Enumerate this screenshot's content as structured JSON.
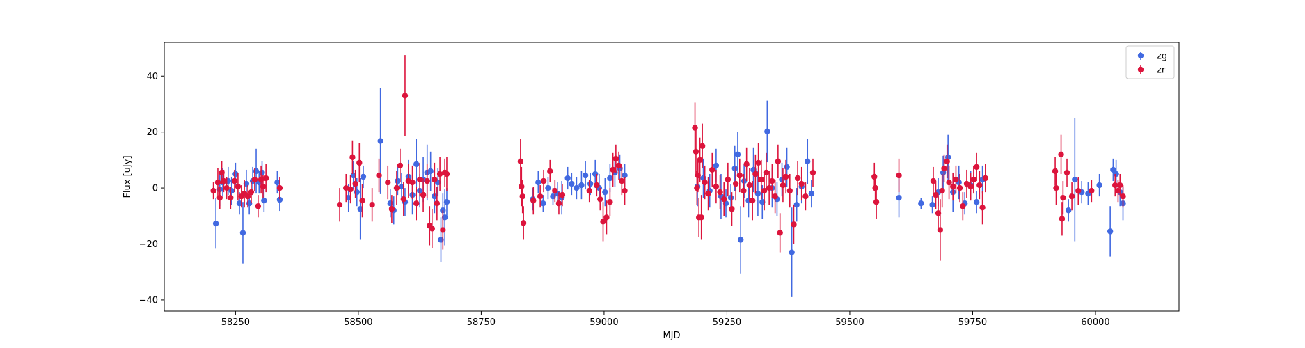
{
  "chart_data": {
    "type": "scatter",
    "xlabel": "MJD",
    "ylabel": "Flux [uJy]",
    "xlim": [
      58105,
      60170
    ],
    "ylim": [
      -44,
      52
    ],
    "xticks": [
      58250,
      58500,
      58750,
      59000,
      59250,
      59500,
      59750,
      60000
    ],
    "yticks": [
      -40,
      -20,
      0,
      20,
      40
    ],
    "grid": false,
    "legend_position": "top-right",
    "series": [
      {
        "name": "zg",
        "color": "#4169e1",
        "points": [
          [
            58210,
            -12.7,
            9
          ],
          [
            58218,
            -0.5,
            6
          ],
          [
            58224,
            2.0,
            5
          ],
          [
            58235,
            2.5,
            5
          ],
          [
            58242,
            -1.0,
            5
          ],
          [
            58250,
            5.0,
            4
          ],
          [
            58258,
            -5.5,
            4
          ],
          [
            58265,
            -16.0,
            11
          ],
          [
            58272,
            1.5,
            5
          ],
          [
            58278,
            -5.5,
            4
          ],
          [
            58285,
            2.5,
            5
          ],
          [
            58292,
            6.0,
            8
          ],
          [
            58298,
            2.0,
            4
          ],
          [
            58304,
            5.5,
            4
          ],
          [
            58308,
            -4.5,
            4
          ],
          [
            58335,
            2.0,
            4
          ],
          [
            58340,
            -4.2,
            4
          ],
          [
            58480,
            -3.5,
            5
          ],
          [
            58490,
            4.5,
            5
          ],
          [
            58497,
            -1.5,
            5
          ],
          [
            58504,
            -7.5,
            11
          ],
          [
            58510,
            4.0,
            4
          ],
          [
            58545,
            16.8,
            19
          ],
          [
            58565,
            -5.5,
            5
          ],
          [
            58572,
            -8.0,
            5
          ],
          [
            58580,
            2.5,
            5
          ],
          [
            58588,
            0.5,
            5
          ],
          [
            58595,
            -5.0,
            5
          ],
          [
            58602,
            4.0,
            6
          ],
          [
            58610,
            -2.5,
            7
          ],
          [
            58618,
            8.5,
            9
          ],
          [
            58625,
            -1.0,
            6
          ],
          [
            58632,
            3.0,
            8
          ],
          [
            58640,
            5.5,
            10
          ],
          [
            58647,
            6.0,
            7
          ],
          [
            58655,
            -3.0,
            6
          ],
          [
            58662,
            2.0,
            5
          ],
          [
            58668,
            -18.5,
            8
          ],
          [
            58672,
            -8.0,
            6
          ],
          [
            58676,
            -10.5,
            10
          ],
          [
            58680,
            -5.0,
            5
          ],
          [
            58855,
            -4.0,
            4
          ],
          [
            58866,
            2.0,
            4
          ],
          [
            58876,
            -5.5,
            3
          ],
          [
            58886,
            0.0,
            4
          ],
          [
            58896,
            -3.0,
            3
          ],
          [
            58905,
            -2.0,
            4
          ],
          [
            58914,
            -3.5,
            6
          ],
          [
            58926,
            3.5,
            4
          ],
          [
            58934,
            1.5,
            4
          ],
          [
            58944,
            0.0,
            4
          ],
          [
            58954,
            1.0,
            5
          ],
          [
            58962,
            4.5,
            5
          ],
          [
            58972,
            1.5,
            4
          ],
          [
            58982,
            5.0,
            5
          ],
          [
            58990,
            0.0,
            5
          ],
          [
            59002,
            -1.5,
            5
          ],
          [
            59012,
            3.5,
            5
          ],
          [
            59022,
            5.5,
            5
          ],
          [
            59032,
            7.0,
            5
          ],
          [
            59042,
            4.5,
            4
          ],
          [
            59190,
            0.5,
            7
          ],
          [
            59202,
            3.5,
            7
          ],
          [
            59215,
            -1.0,
            6
          ],
          [
            59228,
            8.0,
            6
          ],
          [
            59238,
            -3.0,
            8
          ],
          [
            59248,
            -5.5,
            5
          ],
          [
            59258,
            -3.5,
            5
          ],
          [
            59266,
            7.0,
            8
          ],
          [
            59272,
            12.0,
            8
          ],
          [
            59278,
            -18.5,
            12
          ],
          [
            59285,
            2.5,
            6
          ],
          [
            59294,
            -4.5,
            6
          ],
          [
            59304,
            6.5,
            8
          ],
          [
            59313,
            -2.0,
            8
          ],
          [
            59322,
            -5.0,
            6
          ],
          [
            59332,
            20.2,
            11
          ],
          [
            59342,
            0.0,
            7
          ],
          [
            59352,
            -4.0,
            6
          ],
          [
            59362,
            3.0,
            6
          ],
          [
            59372,
            7.5,
            7
          ],
          [
            59382,
            -23.0,
            16
          ],
          [
            59392,
            -6.0,
            6
          ],
          [
            59402,
            0.5,
            6
          ],
          [
            59414,
            9.5,
            8
          ],
          [
            59422,
            -2.0,
            5
          ],
          [
            59600,
            -3.5,
            7
          ],
          [
            59645,
            -5.5,
            2
          ],
          [
            59668,
            -6.0,
            3
          ],
          [
            59680,
            -1.5,
            5
          ],
          [
            59690,
            5.5,
            6
          ],
          [
            59700,
            11.0,
            8
          ],
          [
            59710,
            -1.5,
            7
          ],
          [
            59722,
            2.0,
            6
          ],
          [
            59734,
            -5.5,
            4
          ],
          [
            59746,
            1.0,
            5
          ],
          [
            59758,
            -5.0,
            4
          ],
          [
            59770,
            3.0,
            5
          ],
          [
            59945,
            -8.0,
            4
          ],
          [
            59958,
            3.0,
            22
          ],
          [
            59972,
            -1.5,
            4
          ],
          [
            59985,
            -2.0,
            4
          ],
          [
            60008,
            1.0,
            4
          ],
          [
            60030,
            -15.5,
            9
          ],
          [
            60036,
            6.5,
            4
          ],
          [
            60042,
            5.0,
            5
          ],
          [
            60050,
            -1.5,
            5
          ],
          [
            60056,
            -5.5,
            6
          ]
        ]
      },
      {
        "name": "zr",
        "color": "#dc143c",
        "points": [
          [
            58205,
            -1.0,
            3
          ],
          [
            58214,
            2.0,
            5
          ],
          [
            58218,
            -3.5,
            4
          ],
          [
            58222,
            5.5,
            4
          ],
          [
            58226,
            2.5,
            4
          ],
          [
            58232,
            0.0,
            4
          ],
          [
            58240,
            -3.5,
            4
          ],
          [
            58248,
            2.5,
            4
          ],
          [
            58255,
            0.5,
            5
          ],
          [
            58262,
            -3.0,
            4
          ],
          [
            58268,
            -2.0,
            5
          ],
          [
            58275,
            -3.0,
            4
          ],
          [
            58282,
            -1.5,
            4
          ],
          [
            58289,
            3.0,
            4
          ],
          [
            58296,
            -6.5,
            4
          ],
          [
            58302,
            3.0,
            5
          ],
          [
            58306,
            0.5,
            4
          ],
          [
            58312,
            3.5,
            5
          ],
          [
            58340,
            0.0,
            4
          ],
          [
            58462,
            -6.0,
            6
          ],
          [
            58475,
            0.0,
            5
          ],
          [
            58484,
            -0.5,
            5
          ],
          [
            58488,
            11.0,
            6
          ],
          [
            58494,
            1.5,
            5
          ],
          [
            58502,
            9.0,
            7
          ],
          [
            58508,
            -4.5,
            6
          ],
          [
            58528,
            -6.0,
            6
          ],
          [
            58542,
            4.5,
            6
          ],
          [
            58560,
            2.0,
            6
          ],
          [
            58568,
            -7.5,
            5
          ],
          [
            58578,
            0.0,
            6
          ],
          [
            58585,
            8.0,
            6
          ],
          [
            58592,
            -4.0,
            6
          ],
          [
            58595,
            33.0,
            14.5
          ],
          [
            58602,
            2.5,
            6
          ],
          [
            58610,
            2.0,
            6
          ],
          [
            58618,
            -5.5,
            6
          ],
          [
            58625,
            3.0,
            6
          ],
          [
            58632,
            -2.5,
            6
          ],
          [
            58640,
            2.5,
            6
          ],
          [
            58645,
            -13.5,
            7
          ],
          [
            58650,
            -14.5,
            7
          ],
          [
            58655,
            3.0,
            6
          ],
          [
            58660,
            -5.5,
            6
          ],
          [
            58666,
            5.0,
            6
          ],
          [
            58672,
            -15.0,
            7
          ],
          [
            58676,
            5.5,
            5
          ],
          [
            58680,
            5.0,
            6
          ],
          [
            58830,
            9.5,
            8
          ],
          [
            58832,
            0.5,
            7
          ],
          [
            58834,
            -3.0,
            6
          ],
          [
            58836,
            -12.5,
            6
          ],
          [
            58856,
            -4.5,
            5
          ],
          [
            58870,
            -3.0,
            4
          ],
          [
            58877,
            2.5,
            4
          ],
          [
            58890,
            6.0,
            4
          ],
          [
            58900,
            -1.0,
            4
          ],
          [
            58908,
            -5.5,
            4
          ],
          [
            58915,
            -2.5,
            4
          ],
          [
            58970,
            -1.0,
            4
          ],
          [
            58985,
            1.0,
            4
          ],
          [
            58992,
            -4.0,
            4
          ],
          [
            58998,
            -12.0,
            7
          ],
          [
            59005,
            -10.5,
            6
          ],
          [
            59012,
            -5.0,
            5
          ],
          [
            59018,
            6.5,
            6
          ],
          [
            59024,
            10.5,
            5
          ],
          [
            59030,
            8.0,
            5
          ],
          [
            59036,
            2.5,
            5
          ],
          [
            59042,
            -1.0,
            5
          ],
          [
            59185,
            21.5,
            9
          ],
          [
            59187,
            13.0,
            8
          ],
          [
            59189,
            0.0,
            6
          ],
          [
            59191,
            4.5,
            6
          ],
          [
            59193,
            -10.5,
            7
          ],
          [
            59195,
            10.0,
            8
          ],
          [
            59198,
            -10.5,
            8
          ],
          [
            59200,
            15.0,
            8
          ],
          [
            59205,
            2.0,
            6
          ],
          [
            59212,
            -2.0,
            6
          ],
          [
            59220,
            6.5,
            6
          ],
          [
            59228,
            0.5,
            6
          ],
          [
            59236,
            -1.5,
            6
          ],
          [
            59244,
            -4.0,
            6
          ],
          [
            59252,
            3.0,
            6
          ],
          [
            59260,
            -7.5,
            6
          ],
          [
            59268,
            1.5,
            6
          ],
          [
            59276,
            4.5,
            6
          ],
          [
            59284,
            -1.0,
            6
          ],
          [
            59290,
            8.5,
            6
          ],
          [
            59296,
            1.0,
            6
          ],
          [
            59302,
            -4.5,
            7
          ],
          [
            59308,
            5.0,
            7
          ],
          [
            59314,
            9.0,
            7
          ],
          [
            59320,
            3.0,
            7
          ],
          [
            59326,
            -1.0,
            7
          ],
          [
            59330,
            5.5,
            7
          ],
          [
            59336,
            0.0,
            6
          ],
          [
            59342,
            2.5,
            6
          ],
          [
            59348,
            -3.0,
            6
          ],
          [
            59354,
            9.5,
            6
          ],
          [
            59358,
            -16.0,
            7
          ],
          [
            59364,
            1.0,
            6
          ],
          [
            59370,
            4.0,
            6
          ],
          [
            59378,
            -1.0,
            6
          ],
          [
            59386,
            -13.0,
            7
          ],
          [
            59394,
            3.5,
            6
          ],
          [
            59402,
            1.5,
            6
          ],
          [
            59410,
            -3.0,
            5
          ],
          [
            59425,
            5.5,
            5
          ],
          [
            59550,
            4.0,
            5
          ],
          [
            59552,
            0.0,
            5
          ],
          [
            59554,
            -5.0,
            6
          ],
          [
            59600,
            4.5,
            6
          ],
          [
            59670,
            2.5,
            5
          ],
          [
            59675,
            -2.5,
            5
          ],
          [
            59680,
            -9.0,
            6
          ],
          [
            59684,
            -15.0,
            11
          ],
          [
            59688,
            -1.0,
            6
          ],
          [
            59692,
            7.0,
            5
          ],
          [
            59698,
            9.5,
            6
          ],
          [
            59702,
            2.0,
            6
          ],
          [
            59710,
            0.5,
            5
          ],
          [
            59716,
            3.0,
            5
          ],
          [
            59724,
            0.0,
            5
          ],
          [
            59730,
            -6.5,
            5
          ],
          [
            59738,
            1.5,
            5
          ],
          [
            59746,
            0.5,
            5
          ],
          [
            59752,
            3.0,
            5
          ],
          [
            59758,
            7.5,
            5
          ],
          [
            59764,
            1.0,
            5
          ],
          [
            59770,
            -7.0,
            6
          ],
          [
            59776,
            3.5,
            5
          ],
          [
            59918,
            6.0,
            5
          ],
          [
            59920,
            0.0,
            6
          ],
          [
            59930,
            12.0,
            7
          ],
          [
            59932,
            -11.0,
            6
          ],
          [
            59934,
            -3.5,
            6
          ],
          [
            59942,
            5.5,
            5
          ],
          [
            59952,
            -3.0,
            5
          ],
          [
            59965,
            -1.0,
            5
          ],
          [
            59992,
            -1.0,
            4
          ],
          [
            60040,
            1.0,
            4
          ],
          [
            60046,
            -1.0,
            4
          ],
          [
            60050,
            1.0,
            4
          ],
          [
            60056,
            -3.0,
            4
          ]
        ]
      }
    ]
  }
}
